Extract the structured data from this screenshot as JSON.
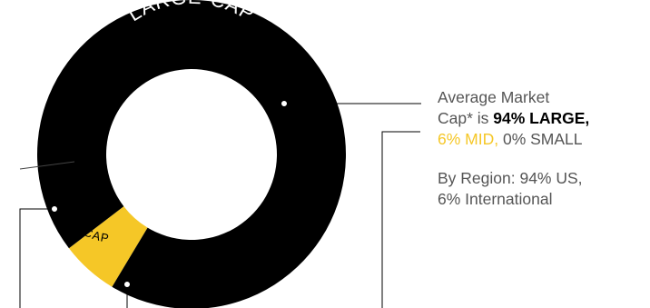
{
  "colors": {
    "large": "#000000",
    "mid": "#f5c727",
    "line": "#000000",
    "muted": "#555555",
    "background": "#ffffff"
  },
  "chart_data": {
    "type": "pie",
    "variant": "donut",
    "slices": [
      {
        "label": "LARGE-CAP",
        "value": 94,
        "color": "#000000"
      },
      {
        "label": "MID-CAP",
        "value": 6,
        "color": "#f5c727"
      },
      {
        "label": "",
        "value": 0
      }
    ]
  },
  "legend": {
    "cap_line1": "Average Market",
    "cap_line2_prefix": "Cap* is ",
    "cap_large": "94% LARGE,",
    "cap_mid": "6% MID,",
    "cap_small": " 0% SMALL",
    "region_line1": "By Region: 94% US,",
    "region_line2": "6% International"
  }
}
